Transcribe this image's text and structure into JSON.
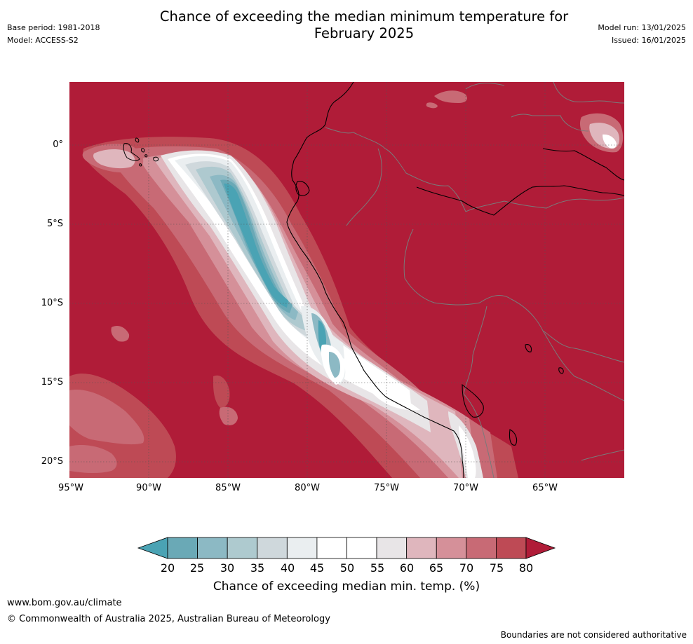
{
  "title_line1": "Chance of exceeding the median minimum temperature for",
  "title_line2": "February 2025",
  "base_period": "Base period: 1981-2018",
  "model": "Model: ACCESS-S2",
  "model_run": "Model run: 13/01/2025",
  "issued": "Issued: 16/01/2025",
  "lat_labels": [
    "0°",
    "5°S",
    "10°S",
    "15°S",
    "20°S"
  ],
  "lon_labels": [
    "95°W",
    "90°W",
    "85°W",
    "80°W",
    "75°W",
    "70°W",
    "65°W"
  ],
  "colorbar": {
    "ticks": [
      "20",
      "25",
      "30",
      "35",
      "40",
      "45",
      "50",
      "55",
      "60",
      "65",
      "70",
      "75",
      "80"
    ],
    "colors": [
      "#6aa9b6",
      "#8cb9c4",
      "#aecaCF",
      "#cfd8dc",
      "#eaeef0",
      "#ffffff",
      "#ffffff",
      "#e8e5e7",
      "#dfb6bd",
      "#d59099",
      "#c86a75",
      "#be4a55"
    ],
    "low_arrow_color": "#4aa3b4",
    "high_arrow_color": "#b01c38",
    "title": "Chance of exceeding median min. temp. (%)"
  },
  "footer_url": "www.bom.gov.au/climate",
  "copyright": "© Commonwealth of Australia 2025, Australian Bureau of Meteorology",
  "disclaimer": "Boundaries are not considered authoritative"
}
